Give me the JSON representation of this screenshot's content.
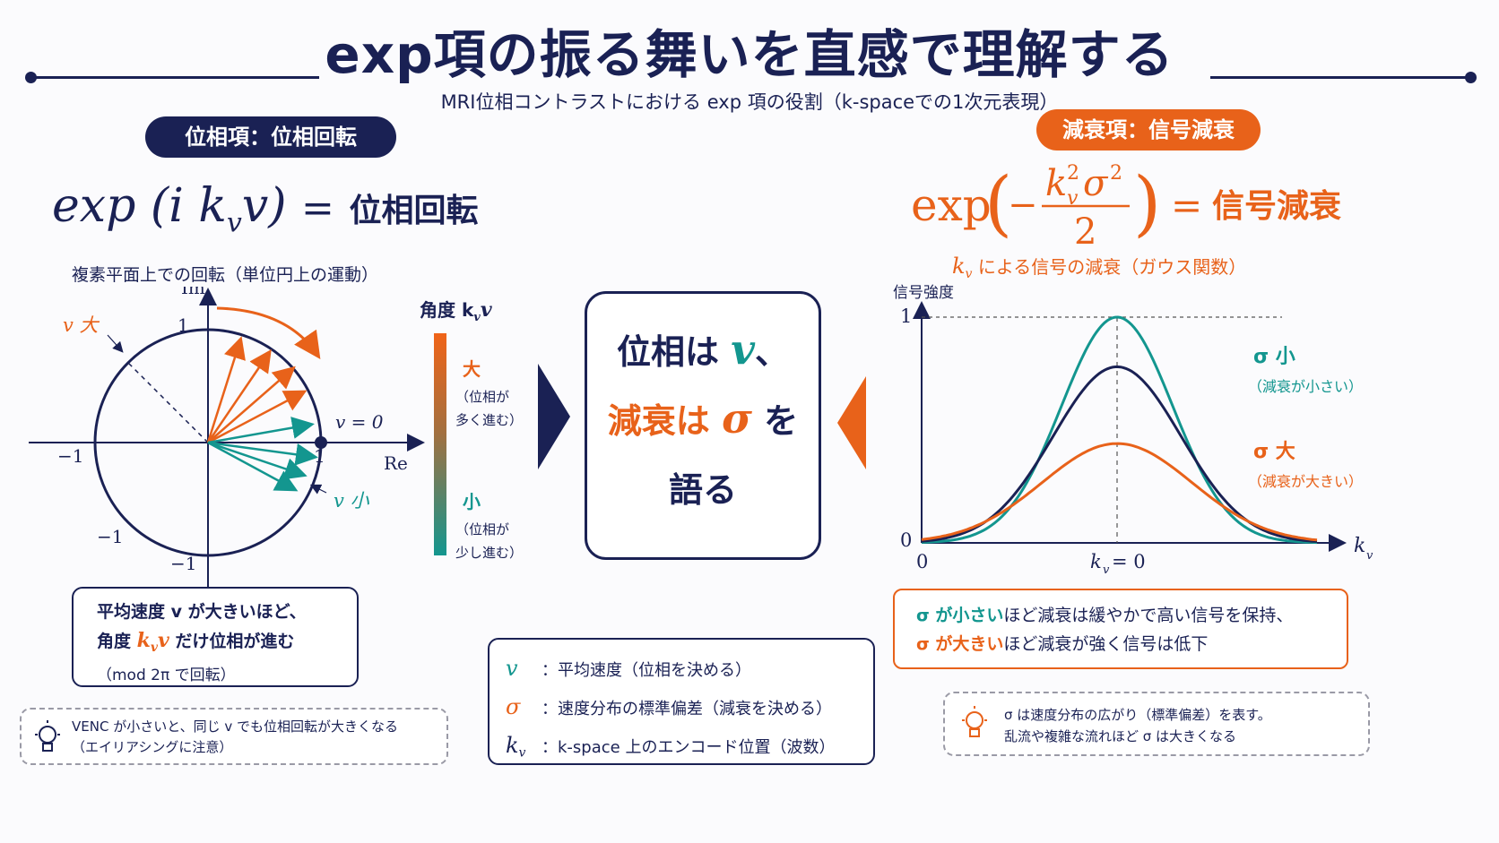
{
  "header": {
    "title": "exp項の振る舞いを直感で理解する",
    "subtitle": "MRI位相コントラストにおける exp 項の役割（k-spaceでの1次元表現）"
  },
  "colors": {
    "navy": "#1a2154",
    "orange": "#e8621a",
    "teal": "#13968f"
  },
  "left": {
    "pill": "位相項：位相回転",
    "formula_lhs": "exp (i k",
    "formula_sub": "v",
    "formula_var": "v)",
    "formula_eq": "=",
    "formula_rhs": "位相回転",
    "caption": "複素平面上での回転（単位円上の運動）",
    "plot": {
      "im_label": "Im",
      "re_label": "Re",
      "one": "1",
      "minus_one": "−1",
      "v_large": "v 大",
      "v_small": "v 小",
      "v_zero": "v = 0"
    },
    "note_line1": "平均速度  v  が大きいほど、",
    "note_line2_a": "角度 ",
    "note_line2_b": "k",
    "note_line2_sub": "v",
    "note_line2_c": "v",
    "note_line2_d": " だけ位相が進む",
    "note_line3": "（mod 2π で回転）",
    "tip_line1": "VENC が小さいと、同じ v でも位相回転が大きくなる",
    "tip_line2": "（エイリアシングに注意）"
  },
  "gradient_bar": {
    "label": "角度 k",
    "label_sub": "v",
    "label_var": "v",
    "large": "大",
    "large_note1": "（位相が",
    "large_note2": "多く進む）",
    "small": "小",
    "small_note1": "（位相が",
    "small_note2": "少し進む）"
  },
  "center": {
    "line1_a": "位相は ",
    "line1_var": "v",
    "line1_b": "、",
    "line2_a": "減衰は ",
    "line2_var": "σ",
    "line2_b": " を",
    "line3": "語る"
  },
  "legend": {
    "items": [
      {
        "sym": "v",
        "text": "：平均速度（位相を決める）"
      },
      {
        "sym": "σ",
        "text": "：速度分布の標準偏差（減衰を決める）"
      },
      {
        "sym": "k",
        "sub": "v",
        "text": "：k-space 上のエンコード位置（波数）"
      }
    ]
  },
  "right": {
    "pill": "減衰項：信号減衰",
    "formula_exp": "exp",
    "formula_num": "k",
    "formula_num_sup": "2",
    "formula_num_sub": "v",
    "formula_sigma": "σ",
    "formula_sigma_sup": "2",
    "formula_den": "2",
    "formula_minus": "−",
    "formula_eq": "=",
    "formula_rhs": "信号減衰",
    "caption_var": "k",
    "caption_sub": "v",
    "caption": " による信号の減衰（ガウス関数）",
    "plot": {
      "ylabel": "信号強度",
      "y_one": "1",
      "y_zero": "0",
      "x_zero": "0",
      "x_axis": "k",
      "x_axis_sub": "v",
      "x_center": "k",
      "x_center_sub": "v",
      "x_center_eq": " = 0",
      "sigma_small": "σ 小",
      "sigma_small_note": "（減衰が小さい）",
      "sigma_large": "σ 大",
      "sigma_large_note": "（減衰が大きい）"
    },
    "note_line1_a": "σ が小さい",
    "note_line1_b": "ほど減衰は緩やかで高い信号を保持、",
    "note_line2_a": "σ が大きい",
    "note_line2_b": "ほど減衰が強く信号は低下",
    "tip_line1": "σ は速度分布の広がり（標準偏差）を表す。",
    "tip_line2": "乱流や複雑な流れほど σ は大きくなる"
  },
  "chart_data": {
    "type": "line",
    "xlabel": "k_v",
    "ylabel": "信号強度",
    "ylim": [
      0,
      1
    ],
    "series": [
      {
        "name": "σ 小",
        "color": "#13968f",
        "peak": 1.0,
        "width": 1.0
      },
      {
        "name": "",
        "color": "#1a2154",
        "peak": 0.78,
        "width": 1.15
      },
      {
        "name": "σ 大",
        "color": "#e8621a",
        "peak": 0.44,
        "width": 1.35
      }
    ]
  }
}
